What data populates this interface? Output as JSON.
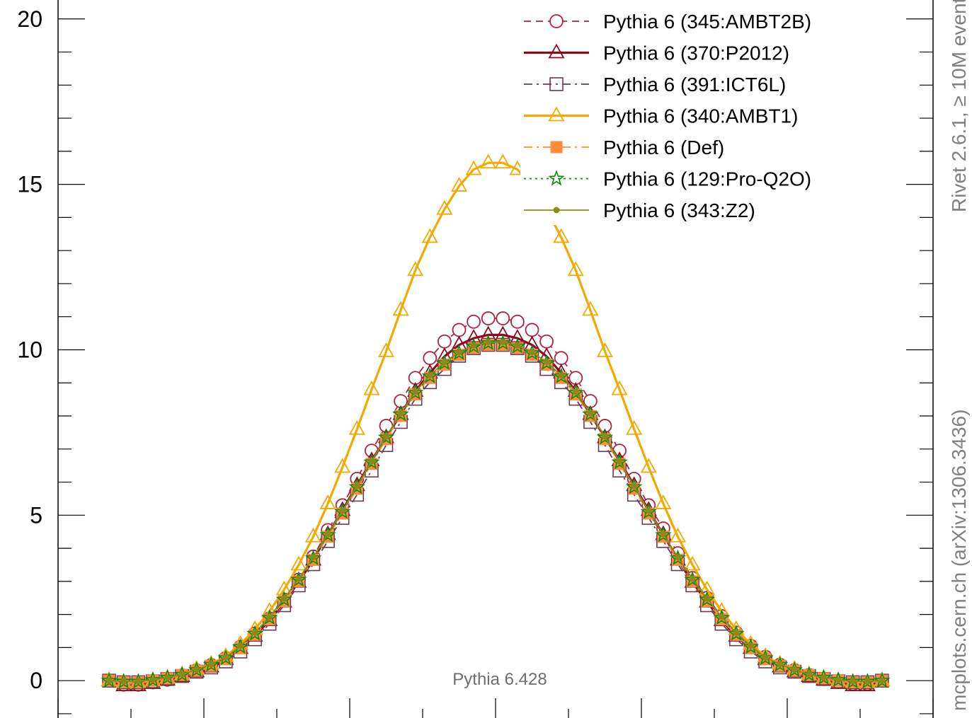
{
  "chart_data": {
    "type": "line",
    "title": "",
    "xlabel": "",
    "ylabel": "",
    "ylim": [
      -1.45,
      21.0
    ],
    "xlim": [
      -6.0,
      6.0
    ],
    "y_ticks": [
      0,
      5,
      10,
      15,
      20
    ],
    "y_tick_labels": [
      "0",
      "5",
      "10",
      "15",
      "20"
    ],
    "grid": false,
    "legend_position": "top-right",
    "annotation": "Pythia 6.428",
    "side_labels": {
      "rivet": "Rivet 2.6.1,  ≥ 10M events",
      "mcplots": "mcplots.cern.ch (arXiv:1306.3436)"
    },
    "x": [
      -5.3,
      -5.1,
      -4.9,
      -4.7,
      -4.5,
      -4.3,
      -4.1,
      -3.9,
      -3.7,
      -3.5,
      -3.3,
      -3.1,
      -2.9,
      -2.7,
      -2.5,
      -2.3,
      -2.1,
      -1.9,
      -1.7,
      -1.5,
      -1.3,
      -1.1,
      -0.9,
      -0.7,
      -0.5,
      -0.3,
      -0.1,
      0.1,
      0.3,
      0.5,
      0.7,
      0.9,
      1.1,
      1.3,
      1.5,
      1.7,
      1.9,
      2.1,
      2.3,
      2.5,
      2.7,
      2.9,
      3.1,
      3.3,
      3.5,
      3.7,
      3.9,
      4.1,
      4.3,
      4.5,
      4.7,
      4.9,
      5.1,
      5.3
    ],
    "series": [
      {
        "name": "Pythia 6 (345:AMBT2B)",
        "color": "#b22243",
        "dash": "dashed",
        "marker": "circle-open",
        "values": [
          0.0,
          -0.12,
          -0.12,
          -0.05,
          0.03,
          0.16,
          0.31,
          0.47,
          0.68,
          1.02,
          1.42,
          1.88,
          2.45,
          3.05,
          3.75,
          4.55,
          5.3,
          6.1,
          6.95,
          7.7,
          8.45,
          9.15,
          9.75,
          10.25,
          10.6,
          10.85,
          10.95,
          10.95,
          10.85,
          10.6,
          10.25,
          9.75,
          9.15,
          8.45,
          7.7,
          6.95,
          6.1,
          5.3,
          4.6,
          3.85,
          3.1,
          2.5,
          1.95,
          1.45,
          1.05,
          0.72,
          0.48,
          0.32,
          0.17,
          0.05,
          -0.04,
          -0.1,
          -0.1,
          0.0
        ]
      },
      {
        "name": "Pythia 6 (370:P2012)",
        "color": "#8b0b1c",
        "dash": "solid",
        "marker": "triangle-open",
        "values": [
          0.0,
          -0.15,
          -0.15,
          -0.08,
          0.02,
          0.13,
          0.27,
          0.42,
          0.64,
          0.98,
          1.35,
          1.82,
          2.38,
          2.98,
          3.65,
          4.42,
          5.15,
          5.9,
          6.65,
          7.35,
          8.05,
          8.75,
          9.3,
          9.8,
          10.15,
          10.35,
          10.45,
          10.45,
          10.35,
          10.15,
          9.8,
          9.3,
          8.75,
          8.05,
          7.35,
          6.65,
          5.9,
          5.15,
          4.42,
          3.65,
          2.98,
          2.38,
          1.82,
          1.35,
          0.98,
          0.64,
          0.42,
          0.27,
          0.13,
          0.02,
          -0.08,
          -0.15,
          -0.15,
          0.0
        ]
      },
      {
        "name": "Pythia 6 (391:ICT6L)",
        "color": "#6b3a57",
        "dash": "dashdot",
        "marker": "square-open",
        "values": [
          0.0,
          -0.05,
          -0.05,
          -0.02,
          0.05,
          0.14,
          0.27,
          0.4,
          0.58,
          0.88,
          1.25,
          1.72,
          2.28,
          2.88,
          3.52,
          4.22,
          4.92,
          5.62,
          6.35,
          7.12,
          7.82,
          8.52,
          9.02,
          9.42,
          9.82,
          10.05,
          10.15,
          10.15,
          10.05,
          9.82,
          9.42,
          9.02,
          8.52,
          7.82,
          7.12,
          6.35,
          5.62,
          4.92,
          4.22,
          3.52,
          2.88,
          2.28,
          1.72,
          1.25,
          0.88,
          0.58,
          0.4,
          0.27,
          0.14,
          0.05,
          -0.02,
          -0.05,
          -0.05,
          0.0
        ]
      },
      {
        "name": "Pythia 6 (340:AMBT1)",
        "color": "#f2a900",
        "dash": "solid",
        "marker": "triangle-open",
        "values": [
          0.0,
          -0.05,
          -0.05,
          0.0,
          0.08,
          0.18,
          0.35,
          0.5,
          0.73,
          1.1,
          1.55,
          2.1,
          2.75,
          3.5,
          4.35,
          5.35,
          6.45,
          7.6,
          8.8,
          9.95,
          11.2,
          12.4,
          13.4,
          14.25,
          14.95,
          15.45,
          15.65,
          15.65,
          15.45,
          14.95,
          14.25,
          13.4,
          12.4,
          11.2,
          9.95,
          8.8,
          7.6,
          6.45,
          5.35,
          4.35,
          3.5,
          2.75,
          2.1,
          1.55,
          1.1,
          0.73,
          0.5,
          0.35,
          0.18,
          0.08,
          0.0,
          -0.05,
          -0.05,
          0.0
        ]
      },
      {
        "name": "Pythia 6 (Def)",
        "color": "#ff8c3a",
        "dash": "dashdot",
        "marker": "square-filled",
        "values": [
          0.0,
          -0.05,
          -0.05,
          0.0,
          0.07,
          0.17,
          0.3,
          0.45,
          0.65,
          0.98,
          1.38,
          1.85,
          2.4,
          3.0,
          3.65,
          4.35,
          5.05,
          5.8,
          6.55,
          7.3,
          8.0,
          8.65,
          9.15,
          9.55,
          9.85,
          10.05,
          10.15,
          10.15,
          10.05,
          9.85,
          9.55,
          9.15,
          8.65,
          8.0,
          7.3,
          6.55,
          5.8,
          5.05,
          4.35,
          3.65,
          3.0,
          2.4,
          1.85,
          1.38,
          0.98,
          0.65,
          0.45,
          0.3,
          0.17,
          0.07,
          0.0,
          -0.05,
          -0.05,
          0.0
        ]
      },
      {
        "name": "Pythia 6 (129:Pro-Q2O)",
        "color": "#0b8c0b",
        "dash": "dotted",
        "marker": "star-open",
        "values": [
          0.0,
          -0.03,
          -0.03,
          0.02,
          0.09,
          0.18,
          0.32,
          0.48,
          0.68,
          1.02,
          1.42,
          1.9,
          2.45,
          3.05,
          3.7,
          4.4,
          5.1,
          5.85,
          6.6,
          7.35,
          8.05,
          8.7,
          9.2,
          9.6,
          9.9,
          10.1,
          10.2,
          10.2,
          10.1,
          9.9,
          9.6,
          9.2,
          8.7,
          8.05,
          7.35,
          6.6,
          5.85,
          5.1,
          4.4,
          3.7,
          3.05,
          2.45,
          1.9,
          1.42,
          1.02,
          0.68,
          0.48,
          0.32,
          0.18,
          0.09,
          0.02,
          -0.03,
          -0.03,
          0.0
        ]
      },
      {
        "name": "Pythia 6 (343:Z2)",
        "color": "#8b8b1c",
        "dash": "solid",
        "marker": "dot",
        "values": [
          0.0,
          -0.02,
          -0.02,
          0.02,
          0.09,
          0.19,
          0.33,
          0.5,
          0.7,
          1.05,
          1.45,
          1.93,
          2.48,
          3.08,
          3.73,
          4.43,
          5.13,
          5.88,
          6.63,
          7.38,
          8.08,
          8.73,
          9.23,
          9.63,
          9.93,
          10.13,
          10.23,
          10.23,
          10.13,
          9.93,
          9.63,
          9.23,
          8.73,
          8.08,
          7.38,
          6.63,
          5.88,
          5.13,
          4.43,
          3.73,
          3.08,
          2.48,
          1.93,
          1.45,
          1.05,
          0.7,
          0.5,
          0.33,
          0.19,
          0.09,
          0.02,
          -0.02,
          -0.02,
          0.0
        ]
      }
    ]
  }
}
